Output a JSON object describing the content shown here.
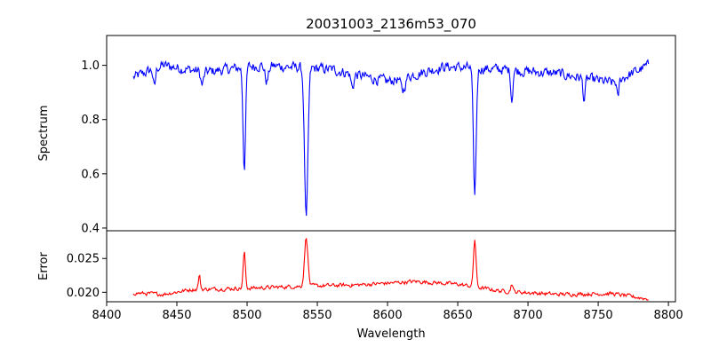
{
  "chart_data": {
    "title": "20031003_2136m53_070",
    "xlabel": "Wavelength",
    "xlim": [
      8400,
      8805
    ],
    "xticks": [
      8400,
      8450,
      8500,
      8550,
      8600,
      8650,
      8700,
      8750,
      8800
    ],
    "x_range": [
      8419,
      8786
    ],
    "panels": [
      {
        "name": "spectrum",
        "type": "line",
        "ylabel": "Spectrum",
        "ylim": [
          0.39,
          1.11
        ],
        "yticks": [
          0.4,
          0.6,
          0.8,
          1.0
        ],
        "ytick_labels": [
          "0.4",
          "0.6",
          "0.8",
          "1.0"
        ],
        "color": "#0000ff",
        "noise": 0.03,
        "baseline": [
          [
            8419,
            0.955
          ],
          [
            8440,
            1.0
          ],
          [
            8470,
            0.975
          ],
          [
            8510,
            1.0
          ],
          [
            8560,
            0.985
          ],
          [
            8600,
            0.94
          ],
          [
            8640,
            0.995
          ],
          [
            8680,
            0.985
          ],
          [
            8720,
            0.97
          ],
          [
            8760,
            0.935
          ],
          [
            8786,
            1.0
          ]
        ],
        "features": [
          {
            "center": 8498.0,
            "depth": 0.37,
            "width": 0.9
          },
          {
            "center": 8542.1,
            "depth": 0.56,
            "width": 1.2
          },
          {
            "center": 8662.1,
            "depth": 0.47,
            "width": 1.0
          },
          {
            "center": 8688.5,
            "depth": 0.11,
            "width": 0.7
          },
          {
            "center": 8514.0,
            "depth": 0.06,
            "width": 1.2
          },
          {
            "center": 8434.0,
            "depth": 0.07,
            "width": 0.8
          },
          {
            "center": 8468.0,
            "depth": 0.05,
            "width": 1.0
          },
          {
            "center": 8575.0,
            "depth": 0.05,
            "width": 1.0
          },
          {
            "center": 8611.0,
            "depth": 0.05,
            "width": 1.5
          },
          {
            "center": 8740.0,
            "depth": 0.08,
            "width": 0.8
          },
          {
            "center": 8764.0,
            "depth": 0.07,
            "width": 0.7
          }
        ]
      },
      {
        "name": "error",
        "type": "line",
        "ylabel": "Error",
        "ylim": [
          0.0186,
          0.0291
        ],
        "yticks": [
          0.02,
          0.025
        ],
        "ytick_labels": [
          "0.020",
          "0.025"
        ],
        "color": "#ff0000",
        "noise": 0.00045,
        "baseline": [
          [
            8419,
            0.0199
          ],
          [
            8440,
            0.0197
          ],
          [
            8460,
            0.0204
          ],
          [
            8500,
            0.0206
          ],
          [
            8540,
            0.0209
          ],
          [
            8580,
            0.0211
          ],
          [
            8620,
            0.0216
          ],
          [
            8650,
            0.0212
          ],
          [
            8680,
            0.0202
          ],
          [
            8720,
            0.0197
          ],
          [
            8760,
            0.0198
          ],
          [
            8786,
            0.019
          ]
        ],
        "features": [
          {
            "center": 8498.0,
            "depth": -0.0053,
            "width": 0.8
          },
          {
            "center": 8542.1,
            "depth": -0.0072,
            "width": 1.2
          },
          {
            "center": 8662.1,
            "depth": -0.007,
            "width": 0.9
          },
          {
            "center": 8688.5,
            "depth": -0.0012,
            "width": 0.7
          },
          {
            "center": 8466.0,
            "depth": -0.002,
            "width": 0.7
          }
        ]
      }
    ]
  }
}
